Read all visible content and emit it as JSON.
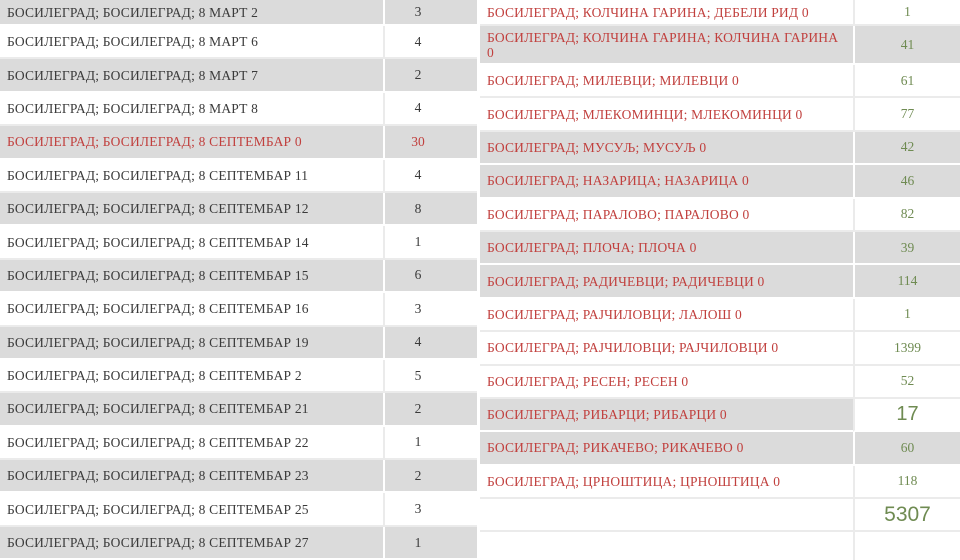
{
  "colors": {
    "red_text": "#c1403e",
    "green_value": "#6f8b52",
    "active_green": "#698750",
    "dark_text": "#3a3a3a",
    "shaded_row_bg": "#dbdbdb",
    "total_text": "#1e1e1e"
  },
  "left_table": {
    "rows": [
      {
        "label": "БОСИЛЕГРАД; БОСИЛЕГРАД; 8 МАРТ 2",
        "value": "3",
        "shaded": true
      },
      {
        "label": "БОСИЛЕГРАД; БОСИЛЕГРАД; 8 МАРТ 6",
        "value": "4"
      },
      {
        "label": "БОСИЛЕГРАД; БОСИЛЕГРАД; 8 МАРТ 7",
        "value": "2",
        "shaded": true
      },
      {
        "label": "БОСИЛЕГРАД; БОСИЛЕГРАД; 8 МАРТ 8",
        "value": "4"
      },
      {
        "label": "БОСИЛЕГРАД; БОСИЛЕГРАД; 8 СЕПТЕМБАР 0",
        "value": "30",
        "shaded": true,
        "red": true
      },
      {
        "label": "БОСИЛЕГРАД; БОСИЛЕГРАД; 8 СЕПТЕМБАР 11",
        "value": "4"
      },
      {
        "label": "БОСИЛЕГРАД; БОСИЛЕГРАД; 8 СЕПТЕМБАР 12",
        "value": "8",
        "shaded": true
      },
      {
        "label": "БОСИЛЕГРАД; БОСИЛЕГРАД; 8 СЕПТЕМБАР 14",
        "value": "1"
      },
      {
        "label": "БОСИЛЕГРАД; БОСИЛЕГРАД; 8 СЕПТЕМБАР 15",
        "value": "6",
        "shaded": true
      },
      {
        "label": "БОСИЛЕГРАД; БОСИЛЕГРАД; 8 СЕПТЕМБАР 16",
        "value": "3"
      },
      {
        "label": "БОСИЛЕГРАД; БОСИЛЕГРАД; 8 СЕПТЕМБАР 19",
        "value": "4",
        "shaded": true
      },
      {
        "label": "БОСИЛЕГРАД; БОСИЛЕГРАД; 8 СЕПТЕМБАР 2",
        "value": "5"
      },
      {
        "label": "БОСИЛЕГРАД; БОСИЛЕГРАД; 8 СЕПТЕМБАР 21",
        "value": "2",
        "shaded": true
      },
      {
        "label": "БОСИЛЕГРАД; БОСИЛЕГРАД; 8 СЕПТЕМБАР 22",
        "value": "1"
      },
      {
        "label": "БОСИЛЕГРАД; БОСИЛЕГРАД; 8 СЕПТЕМБАР 23",
        "value": "2",
        "shaded": true
      },
      {
        "label": "БОСИЛЕГРАД; БОСИЛЕГРАД; 8 СЕПТЕМБАР 25",
        "value": "3"
      },
      {
        "label": "БОСИЛЕГРАД; БОСИЛЕГРАД; 8 СЕПТЕМБАР 27",
        "value": "1",
        "shaded": true
      }
    ]
  },
  "right_table": {
    "rows": [
      {
        "label": "БОСИЛЕГРАД; КОЛЧИНА ГАРИНА; ДЕБЕЛИ РИД 0",
        "value": "1"
      },
      {
        "label": "БОСИЛЕГРАД; КОЛЧИНА ГАРИНА; КОЛЧИНА ГАРИНА\n0",
        "value": "41",
        "shaded": true,
        "tall": true
      },
      {
        "label": "БОСИЛЕГРАД; МИЛЕВЦИ; МИЛЕВЦИ 0",
        "value": "61"
      },
      {
        "label": "БОСИЛЕГРАД; МЛЕКОМИНЦИ; МЛЕКОМИНЦИ 0",
        "value": "77"
      },
      {
        "label": "БОСИЛЕГРАД; МУСУЉ; МУСУЉ 0",
        "value": "42",
        "shaded": true
      },
      {
        "label": "БОСИЛЕГРАД; НАЗАРИЦА; НАЗАРИЦА 0",
        "value": "46",
        "shaded": true
      },
      {
        "label": "БОСИЛЕГРАД; ПАРАЛОВО; ПАРАЛОВО 0",
        "value": "82"
      },
      {
        "label": "БОСИЛЕГРАД; ПЛОЧА; ПЛОЧА 0",
        "value": "39",
        "shaded": true
      },
      {
        "label": "БОСИЛЕГРАД; РАДИЧЕВЦИ; РАДИЧЕВЦИ 0",
        "value": "114",
        "shaded": true
      },
      {
        "label": "БОСИЛЕГРАД; РАЈЧИЛОВЦИ; ЛАЛОШ 0",
        "value": "1"
      },
      {
        "label": "БОСИЛЕГРАД; РАЈЧИЛОВЦИ; РАЈЧИЛОВЦИ 0",
        "value": "1399"
      },
      {
        "label": "БОСИЛЕГРАД; РЕСЕН; РЕСЕН 0",
        "value": "52"
      },
      {
        "label": "БОСИЛЕГРАД; РИБАРЦИ; РИБАРЦИ 0",
        "value": "17",
        "shaded": true,
        "value_class": "active"
      },
      {
        "label": "БОСИЛЕГРАД; РИКАЧЕВО; РИКАЧЕВО 0",
        "value": "60",
        "shaded": true
      },
      {
        "label": "БОСИЛЕГРАД; ЦРНОШТИЦА; ЦРНОШТИЦА 0",
        "value": "118"
      },
      {
        "label": "",
        "value": "5307",
        "value_class": "total"
      },
      {
        "label": "",
        "value": ""
      }
    ]
  }
}
